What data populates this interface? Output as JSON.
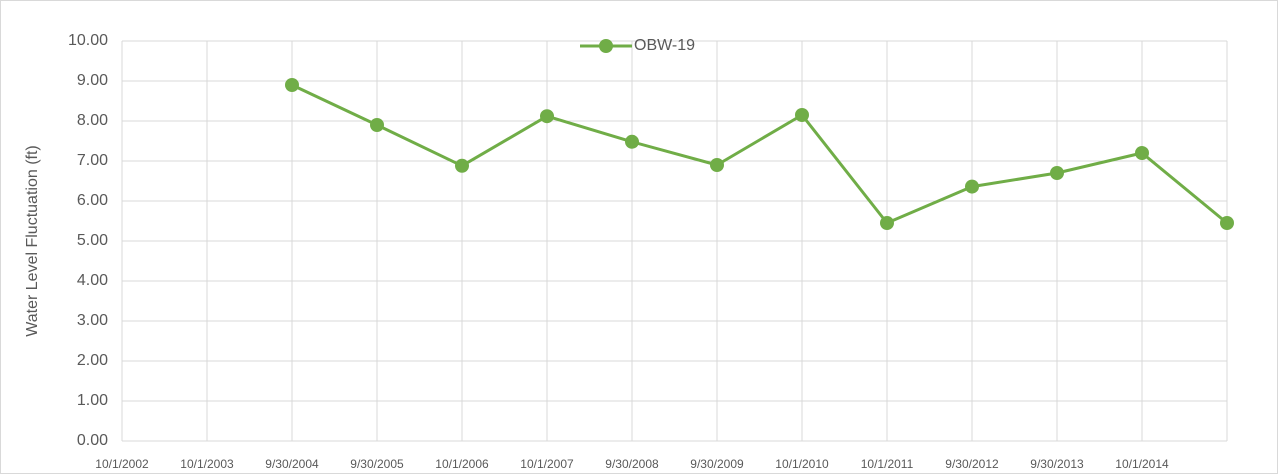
{
  "chart_data": {
    "type": "line",
    "y_label": "Water Level Fluctuation (ft)",
    "categories": [
      "10/1/2002",
      "10/1/2003",
      "9/30/2004",
      "9/30/2005",
      "10/1/2006",
      "10/1/2007",
      "9/30/2008",
      "9/30/2009",
      "10/1/2010",
      "10/1/2011",
      "9/30/2012",
      "9/30/2013",
      "10/1/2014",
      null
    ],
    "series": [
      {
        "name": "OBW-19",
        "color": "#70ad47",
        "values": [
          null,
          null,
          8.9,
          7.9,
          6.88,
          8.12,
          7.48,
          6.9,
          8.15,
          5.45,
          6.36,
          6.7,
          7.2,
          5.45
        ]
      }
    ],
    "ylim": [
      0,
      10
    ],
    "yticks": [
      {
        "value": 0,
        "label": "0.00"
      },
      {
        "value": 1,
        "label": "1.00"
      },
      {
        "value": 2,
        "label": "2.00"
      },
      {
        "value": 3,
        "label": "3.00"
      },
      {
        "value": 4,
        "label": "4.00"
      },
      {
        "value": 5,
        "label": "5.00"
      },
      {
        "value": 6,
        "label": "6.00"
      },
      {
        "value": 7,
        "label": "7.00"
      },
      {
        "value": 8,
        "label": "8.00"
      },
      {
        "value": 9,
        "label": "9.00"
      },
      {
        "value": 10,
        "label": "10.00"
      }
    ],
    "grid": true,
    "legend": "top"
  }
}
